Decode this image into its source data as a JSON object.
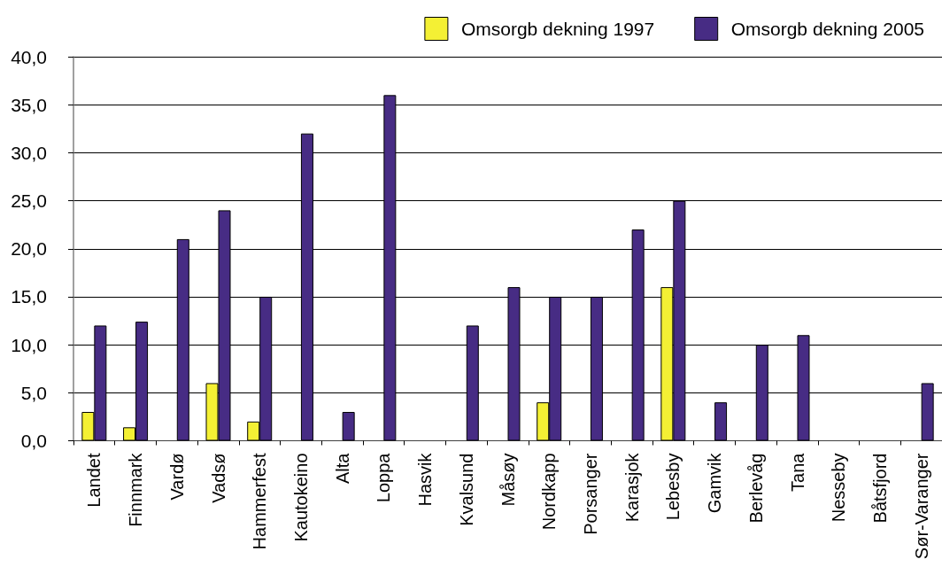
{
  "chart_data": {
    "type": "bar",
    "categories": [
      "Landet",
      "Finnmark",
      "Vardø",
      "Vadsø",
      "Hammerfest",
      "Kautokeino",
      "Alta",
      "Loppa",
      "Hasvik",
      "Kvalsund",
      "Måsøy",
      "Nordkapp",
      "Porsanger",
      "Karasjok",
      "Lebesby",
      "Gamvik",
      "Berlevåg",
      "Tana",
      "Nesseby",
      "Båtsfjord",
      "Sør-Varanger"
    ],
    "series": [
      {
        "name": "Omsorgb dekning 1997",
        "color": "#f4f034",
        "values": [
          3,
          1.4,
          null,
          6,
          2,
          null,
          null,
          null,
          null,
          null,
          null,
          4,
          null,
          null,
          16,
          null,
          null,
          null,
          null,
          null,
          null
        ]
      },
      {
        "name": "Omsorgb dekning 2005",
        "color": "#472c84",
        "values": [
          12,
          12.4,
          21,
          24,
          15,
          32,
          3,
          36,
          null,
          12,
          16,
          15,
          15,
          22,
          25,
          4,
          10,
          11,
          null,
          null,
          6
        ]
      }
    ],
    "ylim": [
      0,
      40
    ],
    "yticks": [
      {
        "value": 0,
        "label": "0,0"
      },
      {
        "value": 5,
        "label": "5,0"
      },
      {
        "value": 10,
        "label": "10,0"
      },
      {
        "value": 15,
        "label": "15,0"
      },
      {
        "value": 20,
        "label": "20,0"
      },
      {
        "value": 25,
        "label": "25,0"
      },
      {
        "value": 30,
        "label": "30,0"
      },
      {
        "value": 35,
        "label": "35,0"
      },
      {
        "value": 40,
        "label": "40,0"
      }
    ],
    "grid": "y",
    "legend": "top right"
  }
}
